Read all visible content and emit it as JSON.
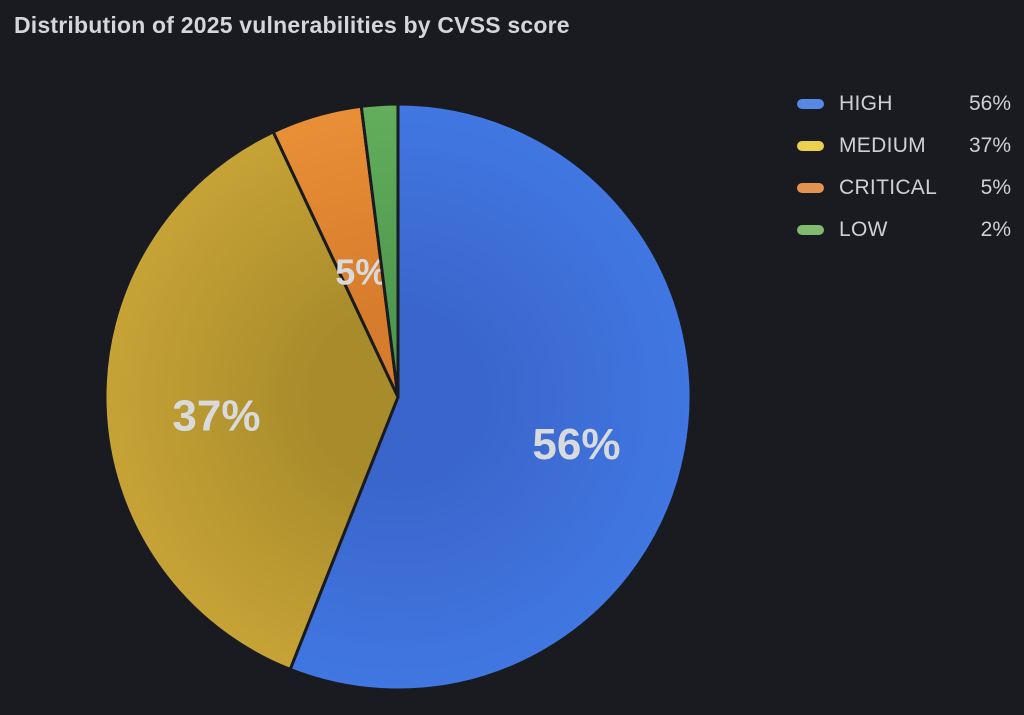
{
  "page": {
    "background_color": "#191b20"
  },
  "chart_data": {
    "type": "pie",
    "title": "Distribution of 2025 vulnerabilities by CVSS score",
    "categories": [
      "HIGH",
      "MEDIUM",
      "CRITICAL",
      "LOW"
    ],
    "values": [
      56,
      37,
      5,
      2
    ],
    "unit": "%",
    "direction": "clockwise",
    "start_angle": "12-o-clock",
    "legend_position": "top-right",
    "label_color": "#d8dade",
    "stroke_color": "#191b20",
    "slices": [
      {
        "label": "HIGH",
        "pct": 56,
        "slice_label": "56%",
        "legend_value": "56%",
        "gradient_inner": "#3a66cc",
        "gradient_outer": "#4177e2",
        "legend_swatch": "#5788e4"
      },
      {
        "label": "MEDIUM",
        "pct": 37,
        "slice_label": "37%",
        "legend_value": "37%",
        "gradient_inner": "#a88c2b",
        "gradient_outer": "#c7a336",
        "legend_swatch": "#ecd04e"
      },
      {
        "label": "CRITICAL",
        "pct": 5,
        "slice_label": "5%",
        "legend_value": "5%",
        "gradient_inner": "#d67c2c",
        "gradient_outer": "#e98f37",
        "legend_swatch": "#e4934e"
      },
      {
        "label": "LOW",
        "pct": 2,
        "slice_label": "",
        "legend_value": "2%",
        "gradient_inner": "#4f9850",
        "gradient_outer": "#63ae5c",
        "legend_swatch": "#80ba6e"
      }
    ]
  }
}
